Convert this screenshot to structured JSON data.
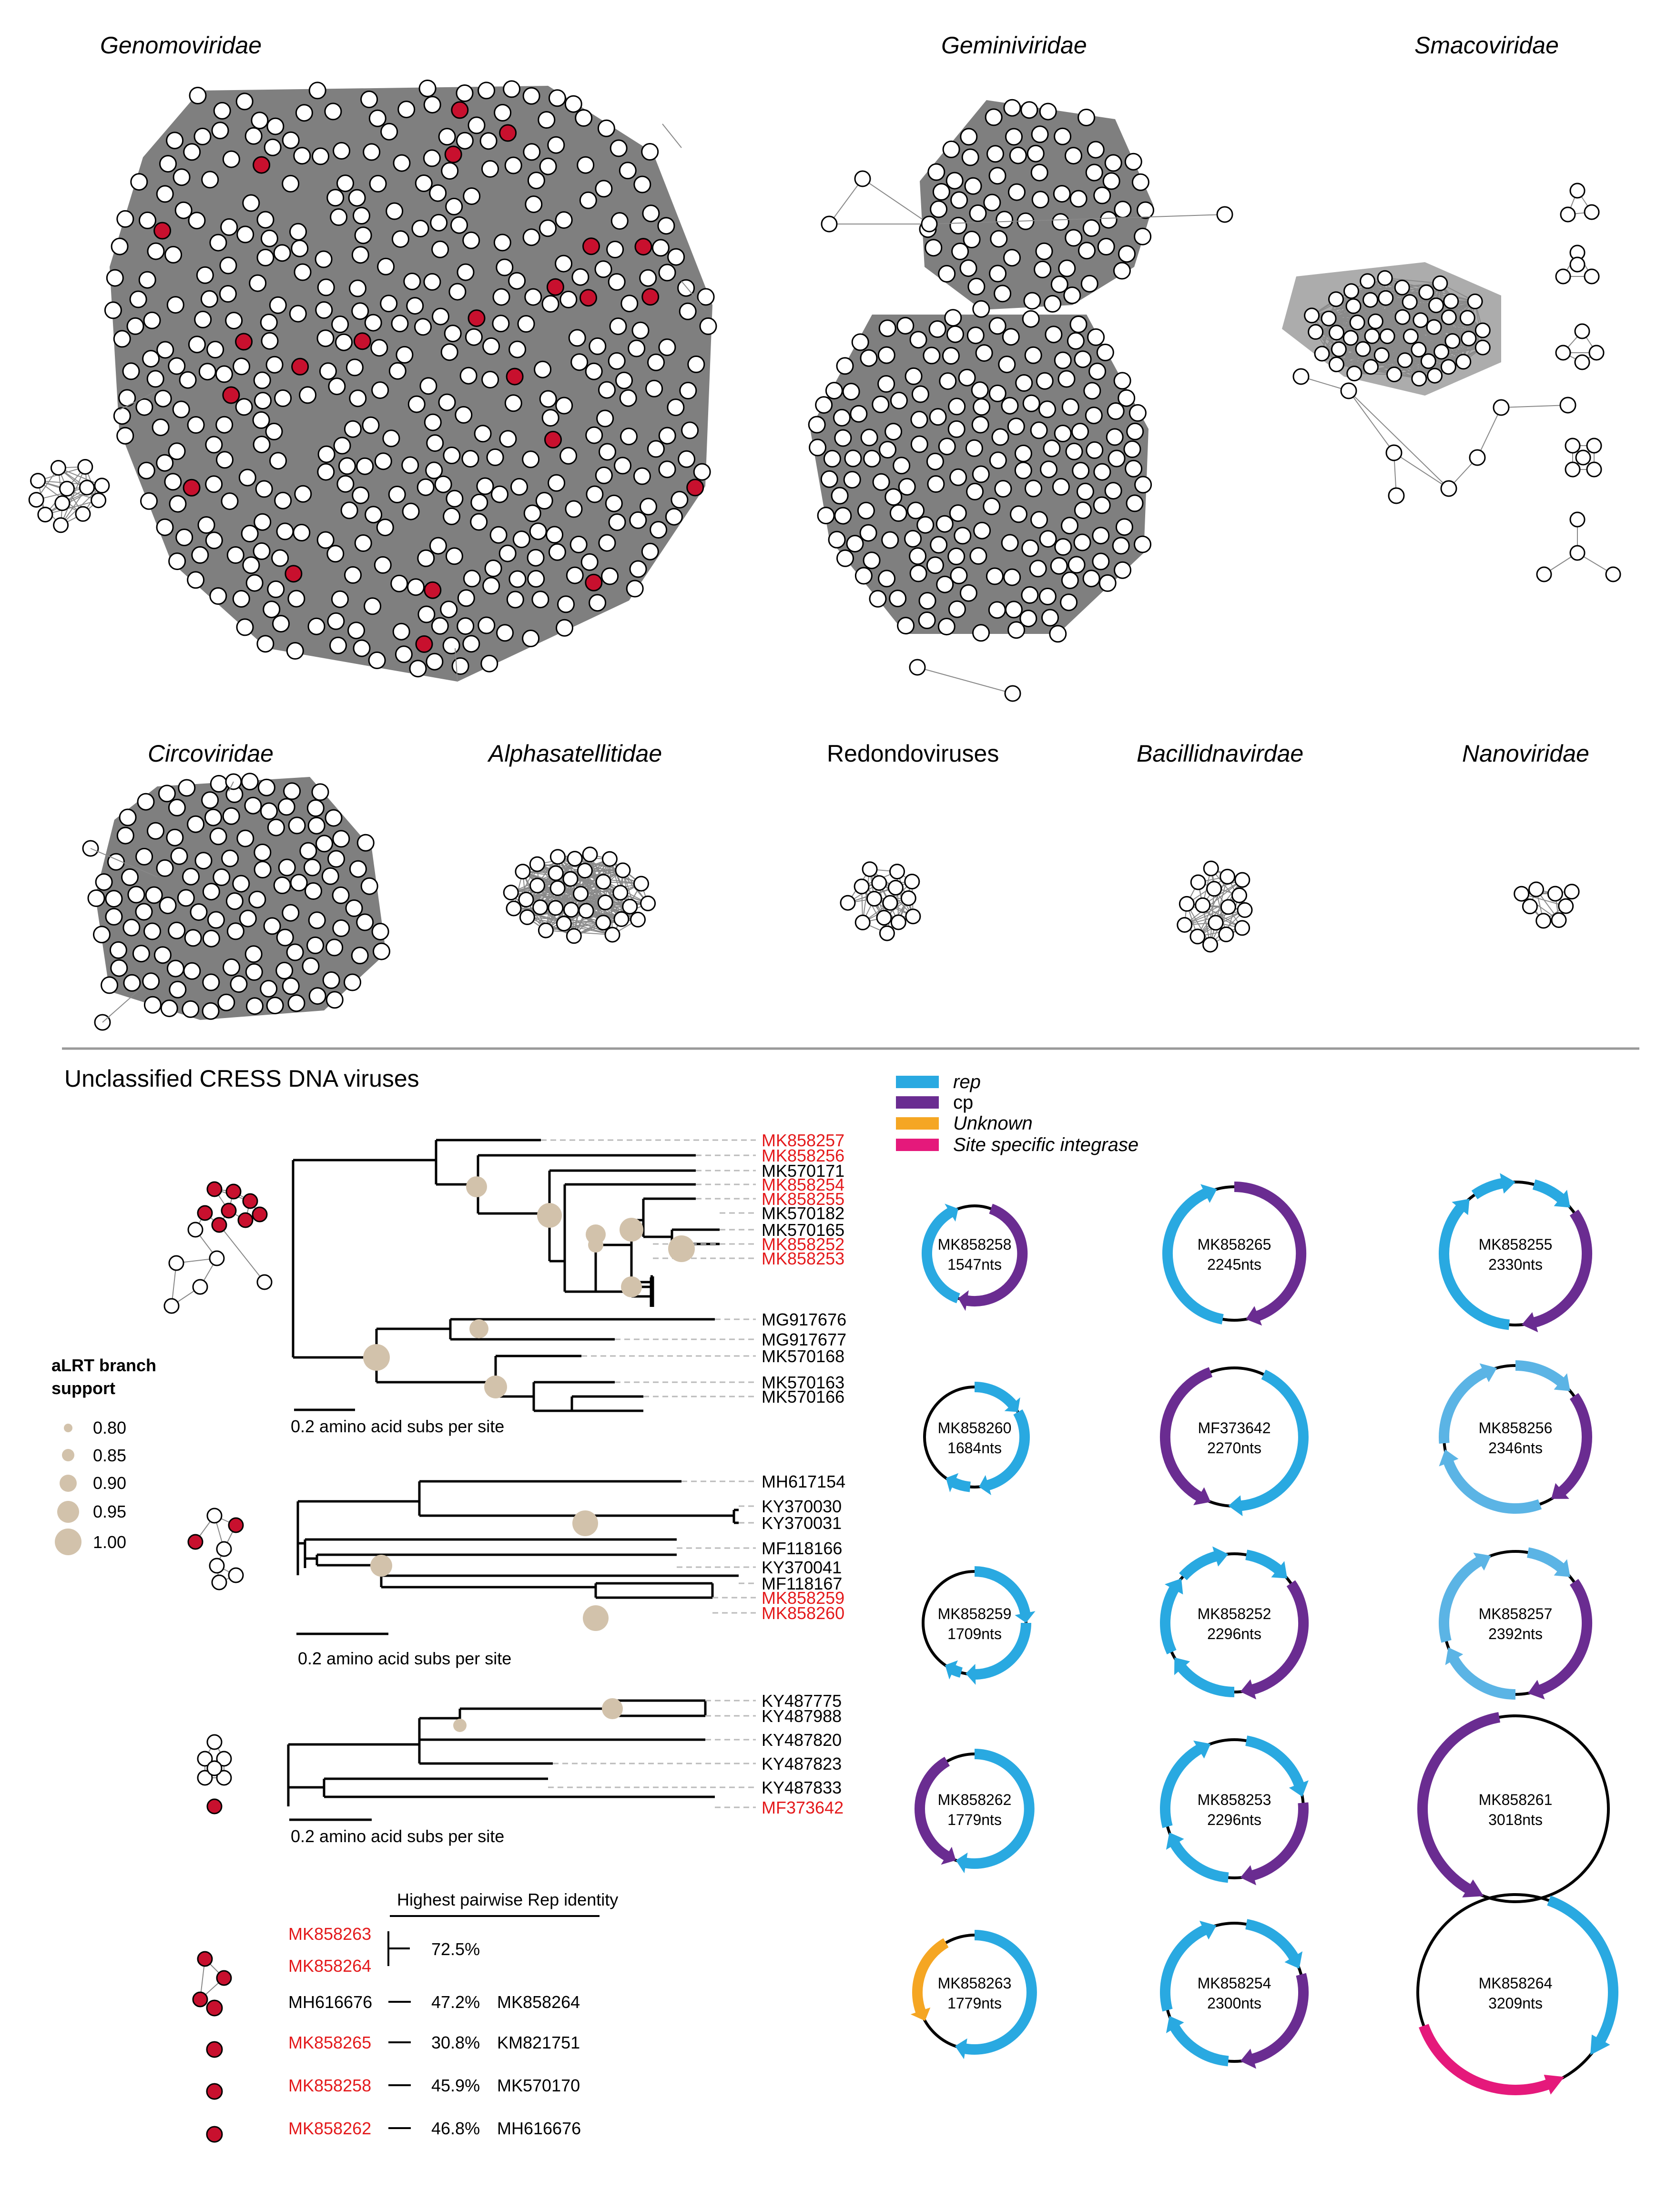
{
  "families": [
    {
      "name": "Genomoviridae",
      "italic": true
    },
    {
      "name": "Geminiviridae",
      "italic": true
    },
    {
      "name": "Smacoviridae",
      "italic": true
    },
    {
      "name": "Circoviridae",
      "italic": true
    },
    {
      "name": "Alphasatellitidae",
      "italic": true
    },
    {
      "name": "Redondoviruses",
      "italic": false
    },
    {
      "name": "Bacillidnavirdae",
      "italic": true
    },
    {
      "name": "Nanoviridae",
      "italic": true
    }
  ],
  "section_title": "Unclassified CRESS DNA viruses",
  "support_legend": {
    "title_line1": "aLRT branch",
    "title_line2": "support",
    "values": [
      "0.80",
      "0.85",
      "0.90",
      "0.95",
      "1.00"
    ]
  },
  "trees": [
    {
      "scale_label": "0.2 amino acid subs per site",
      "tips": [
        {
          "label": "MK858257",
          "red": true
        },
        {
          "label": "MK858256",
          "red": true
        },
        {
          "label": "MK570171",
          "red": false
        },
        {
          "label": "MK858254",
          "red": true
        },
        {
          "label": "MK858255",
          "red": true
        },
        {
          "label": "MK570182",
          "red": false
        },
        {
          "label": "MK570165",
          "red": false
        },
        {
          "label": "MK858252",
          "red": true
        },
        {
          "label": "MK858253",
          "red": true
        },
        {
          "label": "MG917676",
          "red": false
        },
        {
          "label": "MG917677",
          "red": false
        },
        {
          "label": "MK570168",
          "red": false
        },
        {
          "label": "MK570163",
          "red": false
        },
        {
          "label": "MK570166",
          "red": false
        }
      ]
    },
    {
      "scale_label": "0.2 amino acid subs per site",
      "tips": [
        {
          "label": "MH617154",
          "red": false
        },
        {
          "label": "KY370030",
          "red": false
        },
        {
          "label": "KY370031",
          "red": false
        },
        {
          "label": "MF118166",
          "red": false
        },
        {
          "label": "KY370041",
          "red": false
        },
        {
          "label": "MF118167",
          "red": false
        },
        {
          "label": "MK858259",
          "red": true
        },
        {
          "label": "MK858260",
          "red": true
        }
      ]
    },
    {
      "scale_label": "0.2 amino acid subs per site",
      "tips": [
        {
          "label": "KY487775",
          "red": false
        },
        {
          "label": "KY487988",
          "red": false
        },
        {
          "label": "KY487820",
          "red": false
        },
        {
          "label": "KY487823",
          "red": false
        },
        {
          "label": "KY487833",
          "red": false
        },
        {
          "label": "MF373642",
          "red": true
        }
      ]
    }
  ],
  "identity_table": {
    "header": "Highest pairwise Rep identity",
    "rows": [
      {
        "a": "MK858263",
        "b": "MK858264",
        "identity": "72.5%",
        "ref": ""
      },
      {
        "a": "MH616676",
        "identity": "47.2%",
        "ref": "MK858264"
      },
      {
        "a": "MK858265",
        "identity": "30.8%",
        "ref": "KM821751"
      },
      {
        "a": "MK858258",
        "identity": "45.9%",
        "ref": "MK570170"
      },
      {
        "a": "MK858262",
        "identity": "46.8%",
        "ref": "MH616676"
      }
    ]
  },
  "gene_legend": [
    {
      "label": "rep",
      "color": "#29a9e1",
      "italic": true
    },
    {
      "label": "cp",
      "color": "#6a2c91",
      "italic": false
    },
    {
      "label": "Unknown",
      "color": "#f5a623",
      "italic": true
    },
    {
      "label": "Site specific integrase",
      "color": "#e5197b",
      "italic": true
    }
  ],
  "genomes": [
    {
      "id": "MK858258",
      "length": "1547nts"
    },
    {
      "id": "MK858265",
      "length": "2245nts"
    },
    {
      "id": "MK858255",
      "length": "2330nts"
    },
    {
      "id": "MK858260",
      "length": "1684nts"
    },
    {
      "id": "MF373642",
      "length": "2270nts"
    },
    {
      "id": "MK858256",
      "length": "2346nts"
    },
    {
      "id": "MK858259",
      "length": "1709nts"
    },
    {
      "id": "MK858252",
      "length": "2296nts"
    },
    {
      "id": "MK858257",
      "length": "2392nts"
    },
    {
      "id": "MK858262",
      "length": "1779nts"
    },
    {
      "id": "MK858253",
      "length": "2296nts"
    },
    {
      "id": "MK858261",
      "length": "3018nts"
    },
    {
      "id": "MK858263",
      "length": "1779nts"
    },
    {
      "id": "MK858254",
      "length": "2300nts"
    },
    {
      "id": "MK858264",
      "length": "3209nts"
    }
  ],
  "colors": {
    "rep": "#29a9e1",
    "rep_light": "#5bb4e5",
    "cp": "#6a2c91",
    "unknown": "#f5a623",
    "integrase": "#e5197b",
    "highlight": "#c8102e",
    "edge": "#7f7f7f",
    "support": "#d2c2ab",
    "red_text": "#e41a1c"
  }
}
